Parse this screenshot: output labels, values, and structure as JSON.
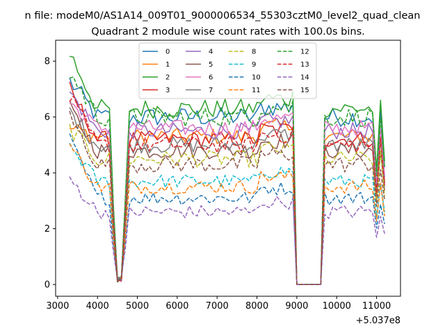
{
  "figure": {
    "suptitle": "n file: modeM0/AS1A14_009T01_9000006534_55303cztM0_level2_quad_clean",
    "offset_label": "+5.037e8"
  },
  "chart_data": {
    "type": "line",
    "title": "Quadrant 2 module wise count rates with 100.0s bins.",
    "xlabel": "",
    "ylabel": "",
    "xlim": [
      2950,
      11600
    ],
    "ylim": [
      -0.42,
      8.75
    ],
    "x_offset": 503700000,
    "xticks": [
      3000,
      4000,
      5000,
      6000,
      7000,
      8000,
      9000,
      10000,
      11000
    ],
    "xtick_labels": [
      "3000",
      "4000",
      "5000",
      "6000",
      "7000",
      "8000",
      "9000",
      "10000",
      "11000"
    ],
    "yticks": [
      0,
      2,
      4,
      6,
      8
    ],
    "ytick_labels": [
      "0",
      "2",
      "4",
      "6",
      "8"
    ],
    "grid": false,
    "legend_position": "upper-center",
    "bin_s": 100,
    "x_start": 3300,
    "gap_low_x": [
      4500,
      4600
    ],
    "gap_zero_x": [
      9000,
      9650
    ],
    "end_x": 11200,
    "series": [
      {
        "name": "0",
        "color": "#1f77b4",
        "dash": "solid",
        "level": 6.0,
        "amp": 0.35,
        "start": 7.3
      },
      {
        "name": "1",
        "color": "#ff7f0e",
        "dash": "solid",
        "level": 5.3,
        "amp": 0.3,
        "start": 5.6
      },
      {
        "name": "2",
        "color": "#2ca02c",
        "dash": "solid",
        "level": 6.3,
        "amp": 0.35,
        "start": 8.3
      },
      {
        "name": "3",
        "color": "#d62728",
        "dash": "solid",
        "level": 5.2,
        "amp": 0.3,
        "start": 7.0
      },
      {
        "name": "4",
        "color": "#9467bd",
        "dash": "solid",
        "level": 5.5,
        "amp": 0.3,
        "start": 6.9
      },
      {
        "name": "5",
        "color": "#8c564b",
        "dash": "solid",
        "level": 4.8,
        "amp": 0.3,
        "start": 6.3
      },
      {
        "name": "6",
        "color": "#e377c2",
        "dash": "solid",
        "level": 5.6,
        "amp": 0.3,
        "start": 6.5
      },
      {
        "name": "7",
        "color": "#7f7f7f",
        "dash": "solid",
        "level": 5.0,
        "amp": 0.3,
        "start": 6.2
      },
      {
        "name": "8",
        "color": "#bcbd22",
        "dash": "dashed",
        "level": 4.5,
        "amp": 0.3,
        "start": 5.6
      },
      {
        "name": "9",
        "color": "#17becf",
        "dash": "dashed",
        "level": 3.7,
        "amp": 0.25,
        "start": 5.0
      },
      {
        "name": "10",
        "color": "#1f77b4",
        "dash": "dashed",
        "level": 3.1,
        "amp": 0.25,
        "start": 5.2
      },
      {
        "name": "11",
        "color": "#ff7f0e",
        "dash": "dashed",
        "level": 3.5,
        "amp": 0.25,
        "start": 5.0
      },
      {
        "name": "12",
        "color": "#2ca02c",
        "dash": "dashed",
        "level": 6.0,
        "amp": 0.35,
        "start": 7.6
      },
      {
        "name": "13",
        "color": "#d62728",
        "dash": "dashed",
        "level": 5.0,
        "amp": 0.3,
        "start": 6.7
      },
      {
        "name": "14",
        "color": "#9467bd",
        "dash": "dashed",
        "level": 2.6,
        "amp": 0.25,
        "start": 3.8
      },
      {
        "name": "15",
        "color": "#8c564b",
        "dash": "dashed",
        "level": 4.3,
        "amp": 0.3,
        "start": 6.0
      }
    ]
  }
}
